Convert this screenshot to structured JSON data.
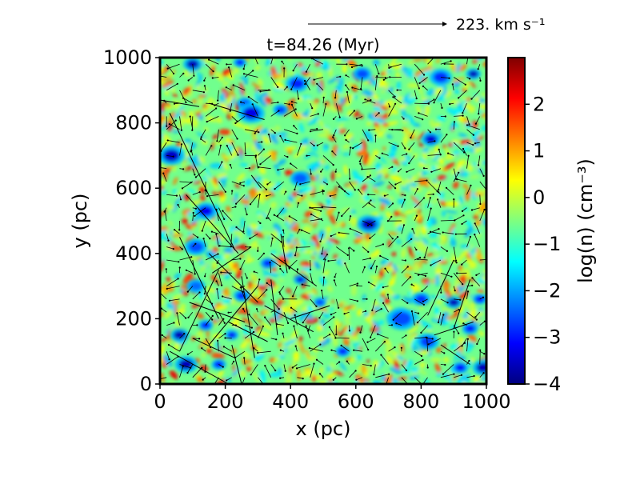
{
  "chart_data": {
    "type": "heatmap",
    "title": "t=84.26 (Myr)",
    "xlabel": "x (pc)",
    "ylabel": "y (pc)",
    "xlim": [
      0,
      1000
    ],
    "ylim": [
      0,
      1000
    ],
    "xticks": [
      0,
      200,
      400,
      600,
      800,
      1000
    ],
    "yticks": [
      0,
      200,
      400,
      600,
      800,
      1000
    ],
    "xtick_labels": [
      "0",
      "200",
      "400",
      "600",
      "800",
      "1000"
    ],
    "ytick_labels": [
      "0",
      "200",
      "400",
      "600",
      "800",
      "1000"
    ],
    "colorbar": {
      "label": "log(n) (cm⁻³)",
      "range": [
        -4,
        3
      ],
      "ticks": [
        -4,
        -3,
        -2,
        -1,
        0,
        1,
        2
      ],
      "tick_labels": [
        "−4",
        "−3",
        "−2",
        "−1",
        "0",
        "1",
        "2"
      ],
      "colormap": "jet",
      "colormap_stops": [
        "#00007f",
        "#0000ff",
        "#007fff",
        "#00ffff",
        "#7fff7f",
        "#ffff00",
        "#ff7f00",
        "#ff0000",
        "#7f0000"
      ]
    },
    "reference_vector": {
      "label": "223. km s⁻¹",
      "value": 223
    },
    "grid": false,
    "field_background_log_n": -0.6,
    "low_density_regions": [
      {
        "x": 100,
        "y": 980,
        "r": 25,
        "v": -3.6
      },
      {
        "x": 245,
        "y": 985,
        "r": 18,
        "v": -3.0
      },
      {
        "x": 420,
        "y": 920,
        "r": 30,
        "v": -2.9
      },
      {
        "x": 260,
        "y": 860,
        "r": 22,
        "v": -2.5
      },
      {
        "x": 280,
        "y": 830,
        "r": 35,
        "v": -3.3
      },
      {
        "x": 370,
        "y": 840,
        "r": 20,
        "v": -2.7
      },
      {
        "x": 35,
        "y": 700,
        "r": 35,
        "v": -3.5
      },
      {
        "x": 860,
        "y": 940,
        "r": 30,
        "v": -2.8
      },
      {
        "x": 960,
        "y": 950,
        "r": 20,
        "v": -3.6
      },
      {
        "x": 830,
        "y": 750,
        "r": 25,
        "v": -3.4
      },
      {
        "x": 620,
        "y": 950,
        "r": 25,
        "v": -2.6
      },
      {
        "x": 140,
        "y": 530,
        "r": 30,
        "v": -3.2
      },
      {
        "x": 110,
        "y": 420,
        "r": 30,
        "v": -2.6
      },
      {
        "x": 430,
        "y": 630,
        "r": 28,
        "v": -2.5
      },
      {
        "x": 640,
        "y": 490,
        "r": 32,
        "v": -3.5
      },
      {
        "x": 330,
        "y": 370,
        "r": 20,
        "v": -2.9
      },
      {
        "x": 430,
        "y": 320,
        "r": 18,
        "v": -3.3
      },
      {
        "x": 250,
        "y": 270,
        "r": 22,
        "v": -2.8
      },
      {
        "x": 110,
        "y": 300,
        "r": 25,
        "v": -2.4
      },
      {
        "x": 60,
        "y": 150,
        "r": 25,
        "v": -3.6
      },
      {
        "x": 140,
        "y": 180,
        "r": 20,
        "v": -3.0
      },
      {
        "x": 220,
        "y": 150,
        "r": 18,
        "v": -3.2
      },
      {
        "x": 80,
        "y": 60,
        "r": 30,
        "v": -3.6
      },
      {
        "x": 180,
        "y": 60,
        "r": 20,
        "v": -3.0
      },
      {
        "x": 740,
        "y": 200,
        "r": 40,
        "v": -2.6
      },
      {
        "x": 800,
        "y": 260,
        "r": 25,
        "v": -2.8
      },
      {
        "x": 900,
        "y": 250,
        "r": 22,
        "v": -3.6
      },
      {
        "x": 980,
        "y": 260,
        "r": 20,
        "v": -3.1
      },
      {
        "x": 950,
        "y": 170,
        "r": 22,
        "v": -3.0
      },
      {
        "x": 990,
        "y": 50,
        "r": 28,
        "v": -3.6
      },
      {
        "x": 920,
        "y": 50,
        "r": 22,
        "v": -3.1
      },
      {
        "x": 560,
        "y": 100,
        "r": 20,
        "v": -2.9
      },
      {
        "x": 490,
        "y": 250,
        "r": 18,
        "v": -2.6
      },
      {
        "x": 820,
        "y": 130,
        "r": 30,
        "v": -2.7
      }
    ],
    "long_vectors": [
      {
        "x": 30,
        "y": 830,
        "dx": 200,
        "dy": -420
      },
      {
        "x": 0,
        "y": 870,
        "dx": 120,
        "dy": -20
      },
      {
        "x": 150,
        "y": 860,
        "dx": 170,
        "dy": -50
      },
      {
        "x": 80,
        "y": 580,
        "dx": 160,
        "dy": -180
      },
      {
        "x": 60,
        "y": 450,
        "dx": 120,
        "dy": -250
      },
      {
        "x": 150,
        "y": 400,
        "dx": 150,
        "dy": -150
      },
      {
        "x": 180,
        "y": 350,
        "dx": -120,
        "dy": -250
      },
      {
        "x": 250,
        "y": 330,
        "dx": 40,
        "dy": -250
      },
      {
        "x": 300,
        "y": 300,
        "dx": -150,
        "dy": -180
      },
      {
        "x": 320,
        "y": 240,
        "dx": 150,
        "dy": -80
      },
      {
        "x": 340,
        "y": 400,
        "dx": 140,
        "dy": -100
      },
      {
        "x": 210,
        "y": 190,
        "dx": 120,
        "dy": -60
      },
      {
        "x": 100,
        "y": 140,
        "dx": 130,
        "dy": -60
      },
      {
        "x": 30,
        "y": 100,
        "dx": 180,
        "dy": -100
      },
      {
        "x": 220,
        "y": 120,
        "dx": 30,
        "dy": -120
      },
      {
        "x": 400,
        "y": 200,
        "dx": 120,
        "dy": 40
      },
      {
        "x": 360,
        "y": 150,
        "dx": -20,
        "dy": 170
      },
      {
        "x": 280,
        "y": 420,
        "dx": -120,
        "dy": -80
      },
      {
        "x": 370,
        "y": 460,
        "dx": 20,
        "dy": -120
      },
      {
        "x": 860,
        "y": 120,
        "dx": 90,
        "dy": -60
      },
      {
        "x": 900,
        "y": 380,
        "dx": -80,
        "dy": -170
      },
      {
        "x": 950,
        "y": 320,
        "dx": -50,
        "dy": -150
      },
      {
        "x": 840,
        "y": 150,
        "dx": 120,
        "dy": 40
      },
      {
        "x": 280,
        "y": 640,
        "dx": 30,
        "dy": -40
      },
      {
        "x": 90,
        "y": 250,
        "dx": 170,
        "dy": -60
      }
    ]
  }
}
